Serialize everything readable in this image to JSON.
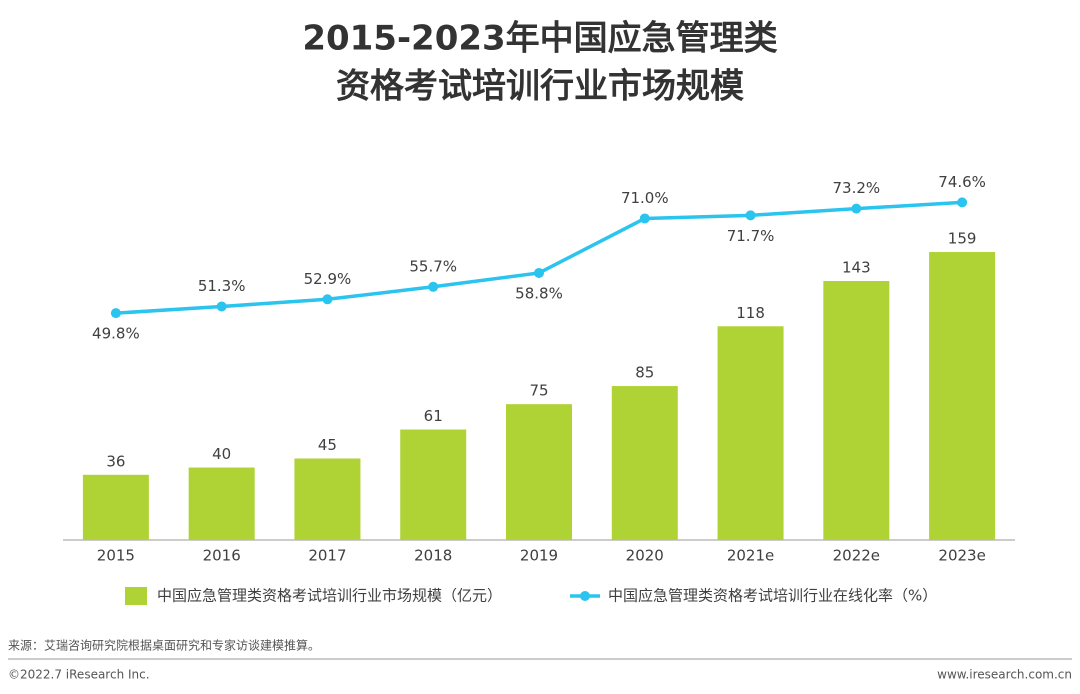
{
  "chart_data": {
    "type": "bar-line",
    "title": "2015-2023年中国应急管理类",
    "subtitle": "资格考试培训行业市场规模",
    "categories": [
      "2015",
      "2016",
      "2017",
      "2018",
      "2019",
      "2020",
      "2021e",
      "2022e",
      "2023e"
    ],
    "series": [
      {
        "name": "中国应急管理类资格考试培训行业市场规模（亿元）",
        "type": "bar",
        "color": "#afd235",
        "values": [
          36,
          40,
          45,
          61,
          75,
          85,
          118,
          143,
          159
        ]
      },
      {
        "name": "中国应急管理类资格考试培训行业在线化率（%）",
        "type": "line",
        "axis": "y2",
        "color": "#2bc4ef",
        "values": [
          49.8,
          51.3,
          52.9,
          55.7,
          58.8,
          71.0,
          71.7,
          73.2,
          74.6
        ],
        "value_labels": [
          "49.8%",
          "51.3%",
          "52.9%",
          "55.7%",
          "58.8%",
          "71.0%",
          "71.7%",
          "73.2%",
          "74.6%"
        ]
      }
    ],
    "ylim": [
      0,
      180
    ],
    "y2lim": [
      -1,
      72
    ],
    "legend": "bottom",
    "source": "来源：艾瑞咨询研究院根据桌面研究和专家访谈建模推算。",
    "copyright": "©2022.7 iResearch Inc.",
    "website": "www.iresearch.com.cn"
  }
}
